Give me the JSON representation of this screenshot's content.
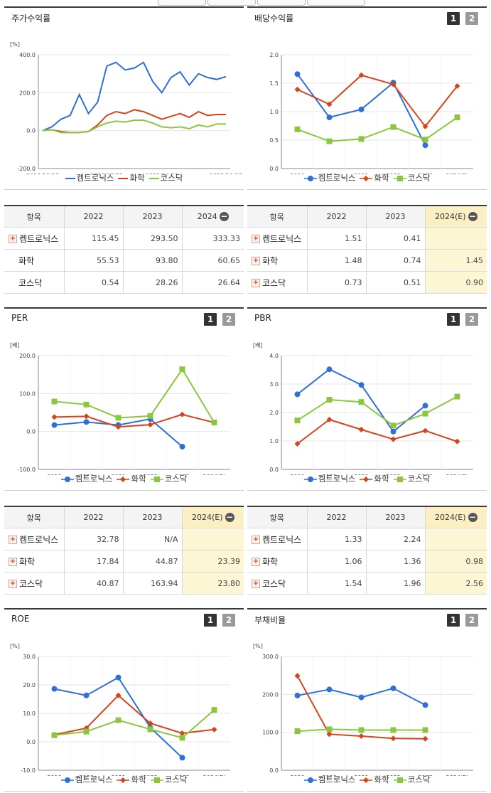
{
  "panels": [
    {
      "title": "주가수익률",
      "btn1": "",
      "btn2": "",
      "unit": "[%]",
      "yticks": [
        "400.0",
        "200.0",
        "0.0",
        "-200.0"
      ],
      "xticks": [
        "2018/12/28",
        "2020/08/31",
        "2022/04/29",
        "2023/12/28"
      ]
    },
    {
      "title": "배당수익률",
      "btn1": "1",
      "btn2": "2",
      "unit": "",
      "yticks": [
        "2.0",
        "1.5",
        "1.0",
        "0.5",
        "0.0"
      ],
      "xticks": [
        "2019",
        "2020",
        "2021",
        "2022",
        "2023",
        "2024(E)"
      ]
    },
    {
      "title": "PER",
      "btn1": "1",
      "btn2": "2",
      "unit": "[배]",
      "yticks": [
        "200.0",
        "100.0",
        "0.0",
        "-100.0"
      ],
      "xticks": [
        "2019",
        "2020",
        "2021",
        "2022",
        "2023",
        "2024(E)"
      ]
    },
    {
      "title": "PBR",
      "btn1": "1",
      "btn2": "2",
      "unit": "[배]",
      "yticks": [
        "4.0",
        "3.0",
        "2.0",
        "1.0",
        "0.0"
      ],
      "xticks": [
        "2019",
        "2020",
        "2021",
        "2022",
        "2023",
        "2024(E)"
      ]
    },
    {
      "title": "ROE",
      "btn1": "1",
      "btn2": "2",
      "unit": "[%]",
      "yticks": [
        "30.0",
        "20.0",
        "10.0",
        "0.0",
        "-10.0"
      ],
      "xticks": [
        "2019",
        "2020",
        "2021",
        "2022",
        "2023",
        "2024(E)"
      ]
    },
    {
      "title": "부채비율",
      "btn1": "1",
      "btn2": "2",
      "unit": "[%]",
      "yticks": [
        "300.0",
        "200.0",
        "100.0",
        "0.0"
      ],
      "xticks": [
        "2019",
        "2020",
        "2021",
        "2022",
        "2023",
        "2024(E)"
      ]
    }
  ],
  "legend": {
    "s1": "켐트로닉스",
    "s2": "화학",
    "s3": "코스닥"
  },
  "colors": {
    "s1": "#2f6fd8",
    "s2": "#d4441c",
    "s3": "#8cc63f"
  },
  "chart_data": [
    {
      "type": "line",
      "title": "주가수익률",
      "ylabel": "[%]",
      "ylim": [
        -200,
        400
      ],
      "x": [
        "2018/12",
        "2019/03",
        "2019/06",
        "2019/09",
        "2019/12",
        "2020/03",
        "2020/06",
        "2020/09",
        "2020/12",
        "2021/03",
        "2021/06",
        "2021/09",
        "2021/12",
        "2022/03",
        "2022/06",
        "2022/09",
        "2022/12",
        "2023/03",
        "2023/06",
        "2023/09",
        "2023/12"
      ],
      "series": [
        {
          "name": "켐트로닉스",
          "values": [
            0,
            20,
            60,
            80,
            190,
            90,
            150,
            340,
            360,
            320,
            330,
            360,
            260,
            200,
            280,
            310,
            240,
            300,
            280,
            270,
            285
          ]
        },
        {
          "name": "화학",
          "values": [
            0,
            5,
            -5,
            -10,
            -10,
            -5,
            30,
            80,
            100,
            90,
            110,
            100,
            80,
            60,
            75,
            90,
            70,
            100,
            80,
            85,
            85
          ]
        },
        {
          "name": "코스닥",
          "values": [
            0,
            5,
            -10,
            -10,
            -10,
            -5,
            20,
            40,
            50,
            45,
            55,
            55,
            40,
            20,
            15,
            20,
            10,
            30,
            20,
            35,
            35
          ]
        }
      ]
    },
    {
      "type": "line",
      "title": "배당수익률",
      "ylim": [
        0,
        2.0
      ],
      "categories": [
        "2019",
        "2020",
        "2021",
        "2022",
        "2023",
        "2024(E)"
      ],
      "series": [
        {
          "name": "켐트로닉스",
          "values": [
            1.66,
            0.9,
            1.04,
            1.51,
            0.41,
            null
          ]
        },
        {
          "name": "화학",
          "values": [
            1.39,
            1.13,
            1.64,
            1.48,
            0.74,
            1.45
          ]
        },
        {
          "name": "코스닥",
          "values": [
            0.69,
            0.48,
            0.52,
            0.73,
            0.51,
            0.9
          ]
        }
      ]
    },
    {
      "type": "line",
      "title": "PER",
      "ylabel": "[배]",
      "ylim": [
        -100,
        200
      ],
      "categories": [
        "2019",
        "2020",
        "2021",
        "2022",
        "2023",
        "2024(E)"
      ],
      "series": [
        {
          "name": "켐트로닉스",
          "values": [
            17,
            25,
            17,
            32.78,
            -40,
            null
          ]
        },
        {
          "name": "화학",
          "values": [
            38,
            40,
            12,
            17.84,
            44.87,
            23.39
          ]
        },
        {
          "name": "코스닥",
          "values": [
            79,
            71,
            36,
            40.87,
            163.94,
            23.8
          ]
        }
      ]
    },
    {
      "type": "line",
      "title": "PBR",
      "ylabel": "[배]",
      "ylim": [
        0,
        4.0
      ],
      "categories": [
        "2019",
        "2020",
        "2021",
        "2022",
        "2023",
        "2024(E)"
      ],
      "series": [
        {
          "name": "켐트로닉스",
          "values": [
            2.64,
            3.52,
            2.97,
            1.33,
            2.24,
            null
          ]
        },
        {
          "name": "화학",
          "values": [
            0.9,
            1.75,
            1.4,
            1.06,
            1.36,
            0.98
          ]
        },
        {
          "name": "코스닥",
          "values": [
            1.72,
            2.45,
            2.37,
            1.54,
            1.96,
            2.56
          ]
        }
      ]
    },
    {
      "type": "line",
      "title": "ROE",
      "ylabel": "[%]",
      "ylim": [
        -10,
        30
      ],
      "categories": [
        "2019",
        "2020",
        "2021",
        "2022",
        "2023",
        "2024(E)"
      ],
      "series": [
        {
          "name": "켐트로닉스",
          "values": [
            18.6,
            16.3,
            22.6,
            5.0,
            -5.6,
            null
          ]
        },
        {
          "name": "화학",
          "values": [
            2.5,
            4.8,
            16.3,
            6.5,
            3.0,
            4.3
          ]
        },
        {
          "name": "코스닥",
          "values": [
            2.3,
            3.6,
            7.6,
            4.4,
            1.4,
            11.2
          ]
        }
      ]
    },
    {
      "type": "line",
      "title": "부채비율",
      "ylabel": "[%]",
      "ylim": [
        0,
        300
      ],
      "categories": [
        "2019",
        "2020",
        "2021",
        "2022",
        "2023",
        "2024(E)"
      ],
      "series": [
        {
          "name": "켐트로닉스",
          "values": [
            197,
            213,
            192,
            216,
            172,
            null
          ]
        },
        {
          "name": "화학",
          "values": [
            249,
            95,
            90,
            84,
            83,
            null
          ]
        },
        {
          "name": "코스닥",
          "values": [
            103,
            108,
            106,
            106,
            106,
            null
          ]
        }
      ]
    }
  ],
  "tables": {
    "stock": {
      "headers": [
        "항목",
        "2022",
        "2023",
        "2024"
      ],
      "rows": [
        {
          "name": "켐트로닉스",
          "v": [
            "115.45",
            "293.50",
            "333.33"
          ]
        },
        {
          "name": "화학",
          "v": [
            "55.53",
            "93.80",
            "60.65"
          ]
        },
        {
          "name": "코스닥",
          "v": [
            "0.54",
            "28.26",
            "26.64"
          ]
        }
      ]
    },
    "div": {
      "headers": [
        "항목",
        "2022",
        "2023",
        "2024(E)"
      ],
      "rows": [
        {
          "name": "켐트로닉스",
          "v": [
            "1.51",
            "0.41",
            ""
          ]
        },
        {
          "name": "화학",
          "v": [
            "1.48",
            "0.74",
            "1.45"
          ]
        },
        {
          "name": "코스닥",
          "v": [
            "0.73",
            "0.51",
            "0.90"
          ]
        }
      ]
    },
    "per": {
      "headers": [
        "항목",
        "2022",
        "2023",
        "2024(E)"
      ],
      "rows": [
        {
          "name": "켐트로닉스",
          "v": [
            "32.78",
            "N/A",
            ""
          ]
        },
        {
          "name": "화학",
          "v": [
            "17.84",
            "44.87",
            "23.39"
          ]
        },
        {
          "name": "코스닥",
          "v": [
            "40.87",
            "163.94",
            "23.80"
          ]
        }
      ]
    },
    "pbr": {
      "headers": [
        "항목",
        "2022",
        "2023",
        "2024(E)"
      ],
      "rows": [
        {
          "name": "켐트로닉스",
          "v": [
            "1.33",
            "2.24",
            ""
          ]
        },
        {
          "name": "화학",
          "v": [
            "1.06",
            "1.36",
            "0.98"
          ]
        },
        {
          "name": "코스닥",
          "v": [
            "1.54",
            "1.96",
            "2.56"
          ]
        }
      ]
    }
  }
}
